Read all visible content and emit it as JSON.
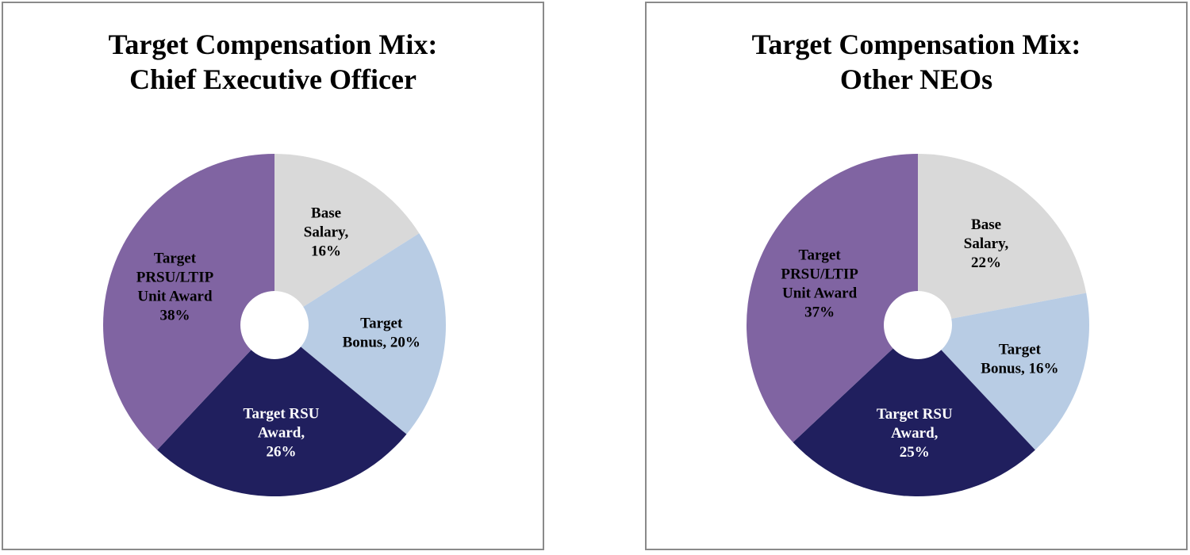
{
  "chart_data": [
    {
      "type": "pie",
      "title_lines": [
        "Target Compensation Mix:",
        "Chief Executive Officer"
      ],
      "slices": [
        {
          "label_lines": [
            "Base",
            "Salary,",
            "16%"
          ],
          "value": 16,
          "color": "#d9d9d9",
          "text_color": "#000000"
        },
        {
          "label_lines": [
            "Target",
            "Bonus, 20%"
          ],
          "value": 20,
          "color": "#b8cce4",
          "text_color": "#000000"
        },
        {
          "label_lines": [
            "Target RSU",
            "Award,",
            "26%"
          ],
          "value": 26,
          "color": "#201f5e",
          "text_color": "#ffffff"
        },
        {
          "label_lines": [
            "Target",
            "PRSU/LTIP",
            "Unit Award",
            "38%"
          ],
          "value": 38,
          "color": "#8064a2",
          "text_color": "#000000"
        }
      ]
    },
    {
      "type": "pie",
      "title_lines": [
        "Target Compensation Mix:",
        "Other NEOs"
      ],
      "slices": [
        {
          "label_lines": [
            "Base",
            "Salary,",
            "22%"
          ],
          "value": 22,
          "color": "#d9d9d9",
          "text_color": "#000000"
        },
        {
          "label_lines": [
            "Target",
            "Bonus, 16%"
          ],
          "value": 16,
          "color": "#b8cce4",
          "text_color": "#000000"
        },
        {
          "label_lines": [
            "Target RSU",
            "Award,",
            "25%"
          ],
          "value": 25,
          "color": "#201f5e",
          "text_color": "#ffffff"
        },
        {
          "label_lines": [
            "Target",
            "PRSU/LTIP",
            "Unit Award",
            "37%"
          ],
          "value": 37,
          "color": "#8064a2",
          "text_color": "#000000"
        }
      ]
    }
  ]
}
